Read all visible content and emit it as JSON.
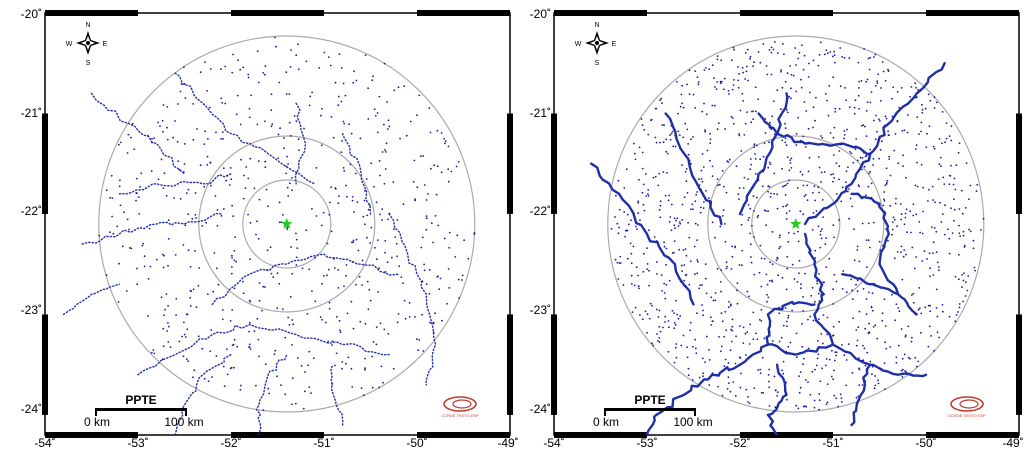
{
  "map_view": {
    "longitude_ticks": [
      "-54˚",
      "-53˚",
      "-52˚",
      "-51˚",
      "-50˚",
      "-49˚"
    ],
    "latitude_ticks": [
      "-20˚",
      "-21˚",
      "-22˚",
      "-23˚",
      "-24˚"
    ],
    "extent": {
      "lon_min": -54,
      "lon_max": -49,
      "lat_min": -24.2,
      "lat_max": -20
    },
    "station": {
      "lon": -51.4,
      "lat": -22.1,
      "color": "#22cc22"
    },
    "range_rings": {
      "color": "#aaaaaa"
    },
    "point_color": "#1a1a9c",
    "line_color": "#1f2fa8"
  },
  "compass": {
    "n": "N",
    "s": "S",
    "e": "E",
    "w": "W"
  },
  "panels": [
    {
      "id": "left",
      "scale_bar": {
        "title": "PPTE",
        "zero_label": "0 km",
        "end_label": "100 km"
      },
      "logo": {
        "text": "CCRDE TEXTO ESP"
      }
    },
    {
      "id": "right",
      "scale_bar": {
        "title": "PPTE",
        "zero_label": "0 km",
        "end_label": "100 km"
      },
      "logo": {
        "text": "CCRDE TEXTO ESP"
      }
    }
  ]
}
